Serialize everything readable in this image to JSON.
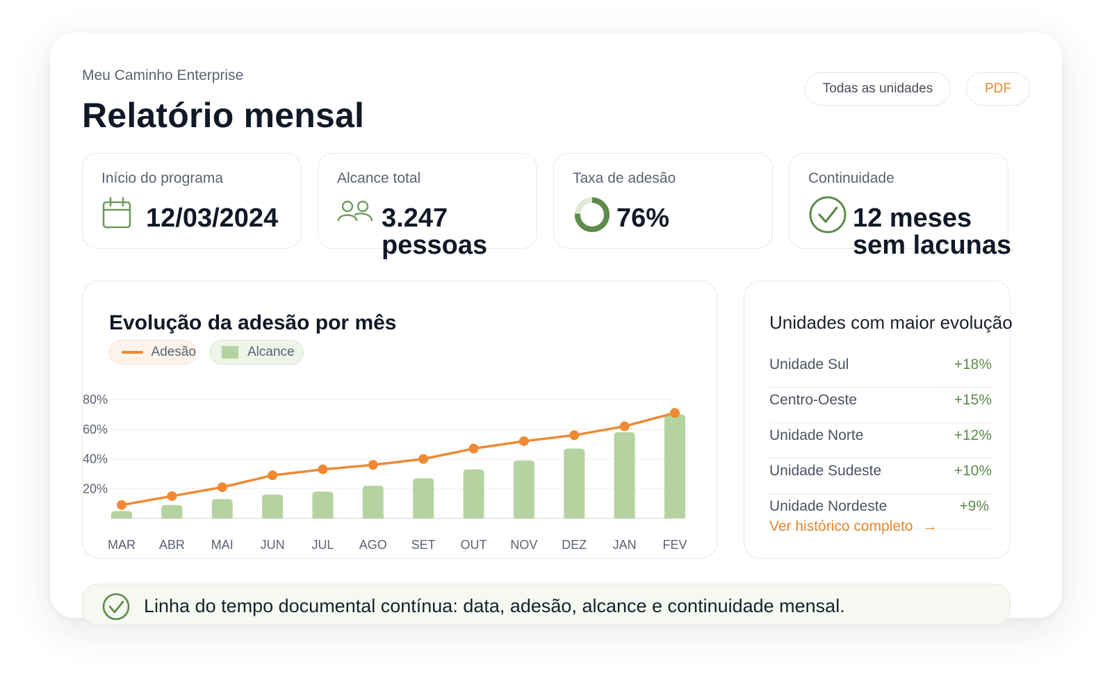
{
  "header": {
    "brand": "Meu Caminho Enterprise",
    "title": "Relatório mensal",
    "filter_label": "Todas as unidades",
    "pdf_label": "PDF"
  },
  "kpis": [
    {
      "label": "Início do programa",
      "value": "12/03/2024",
      "icon": "calendar-icon"
    },
    {
      "label": "Alcance total",
      "value": "3.247",
      "value_line2": "pessoas",
      "icon": "people-icon"
    },
    {
      "label": "Taxa de adesão",
      "value": "76%",
      "icon": "donut-icon",
      "fraction": 0.76
    },
    {
      "label": "Continuidade",
      "value": "12 meses",
      "value_line2": "sem lacunas",
      "icon": "check-circle-icon"
    }
  ],
  "chart_data": {
    "type": "bar",
    "title": "Evolução da adesão por mês",
    "categories": [
      "MAR",
      "ABR",
      "MAI",
      "JUN",
      "JUL",
      "AGO",
      "SET",
      "OUT",
      "NOV",
      "DEZ",
      "JAN",
      "FEV"
    ],
    "series": [
      {
        "name": "Alcance",
        "type": "bar",
        "color": "#b5d3a0",
        "values": [
          5,
          9,
          13,
          16,
          18,
          22,
          27,
          33,
          39,
          47,
          58,
          70
        ]
      },
      {
        "name": "Adesão",
        "type": "line",
        "color": "#ee8a33",
        "values": [
          9,
          15,
          21,
          29,
          33,
          36,
          40,
          47,
          52,
          56,
          62,
          71
        ]
      }
    ],
    "y_ticks": [
      "20%",
      "40%",
      "60%",
      "80%"
    ],
    "ylim": [
      0,
      80
    ],
    "grid": true,
    "legend": "top-left"
  },
  "ranking": {
    "title": "Unidades com maior evolução",
    "items": [
      {
        "name": "Unidade Sul",
        "value": "+18%"
      },
      {
        "name": "Centro-Oeste",
        "value": "+15%"
      },
      {
        "name": "Unidade Norte",
        "value": "+12%"
      },
      {
        "name": "Unidade Sudeste",
        "value": "+10%"
      },
      {
        "name": "Unidade Nordeste",
        "value": "+9%"
      }
    ],
    "link_label": "Ver histórico completo",
    "link_arrow": "→"
  },
  "banner": {
    "text": "Linha do tempo documental contínua: data, adesão, alcance e continuidade mensal.",
    "icon": "check-circle-icon"
  },
  "colors": {
    "accent_orange": "#ee8a33",
    "accent_green": "#5d8a4a",
    "bar_green": "#b5d3a0"
  }
}
